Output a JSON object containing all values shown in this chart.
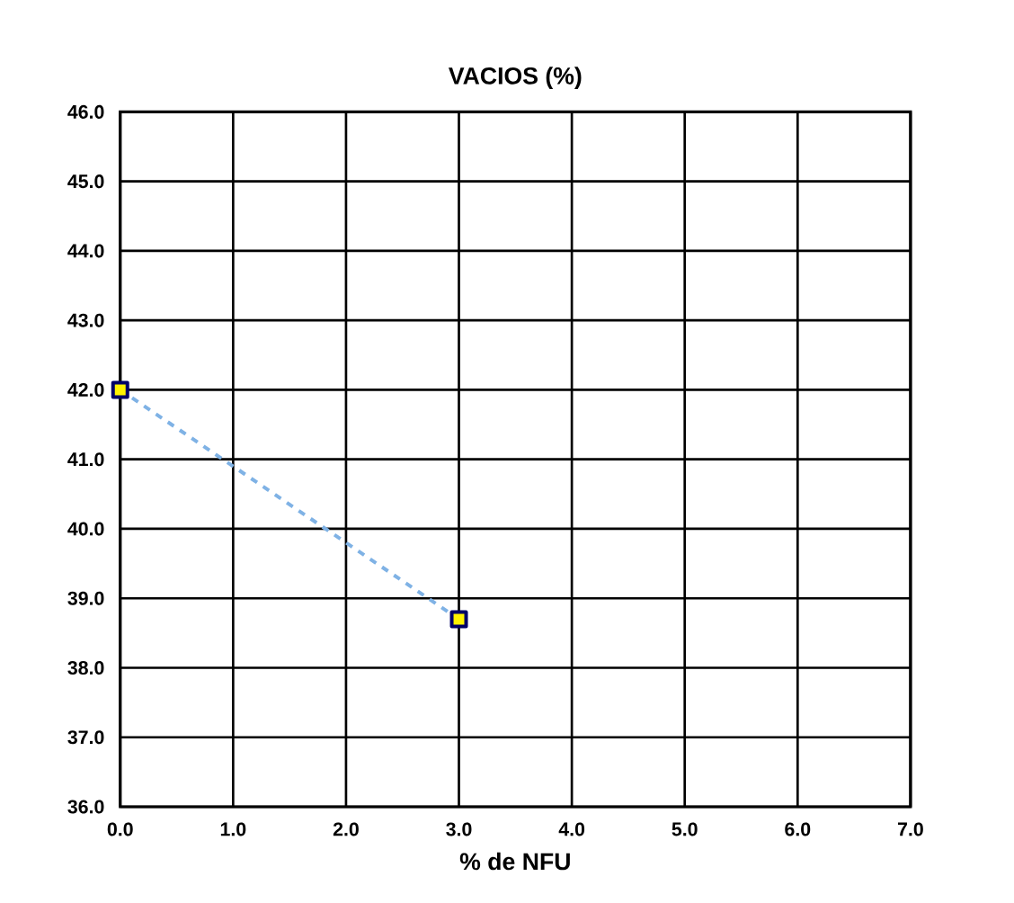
{
  "chart_data": {
    "type": "line",
    "title": "VACIOS (%)",
    "xlabel": "% de NFU",
    "x": [
      0,
      3
    ],
    "series": [
      {
        "color": "#7fb2e5",
        "values": [
          42.0,
          38.7
        ]
      }
    ],
    "xlim": [
      0,
      7
    ],
    "xticks": [
      {
        "value": 0,
        "label": "0.0"
      },
      {
        "value": 1,
        "label": "1.0"
      },
      {
        "value": 2,
        "label": "2.0"
      },
      {
        "value": 3,
        "label": "3.0"
      },
      {
        "value": 4,
        "label": "4.0"
      },
      {
        "value": 5,
        "label": "5.0"
      },
      {
        "value": 6,
        "label": "6.0"
      },
      {
        "value": 7,
        "label": "7.0"
      }
    ],
    "ylim": [
      36,
      46
    ],
    "yticks": [
      {
        "value": 36,
        "label": "36.0"
      },
      {
        "value": 37,
        "label": "37.0"
      },
      {
        "value": 38,
        "label": "38.0"
      },
      {
        "value": 39,
        "label": "39.0"
      },
      {
        "value": 40,
        "label": "40.0"
      },
      {
        "value": 41,
        "label": "41.0"
      },
      {
        "value": 42,
        "label": "42.0"
      },
      {
        "value": 43,
        "label": "43.0"
      },
      {
        "value": 44,
        "label": "44.0"
      },
      {
        "value": 45,
        "label": "45.0"
      },
      {
        "value": 46,
        "label": "46.0"
      }
    ],
    "grid": true,
    "marker": "square",
    "line_style": "dashed"
  }
}
